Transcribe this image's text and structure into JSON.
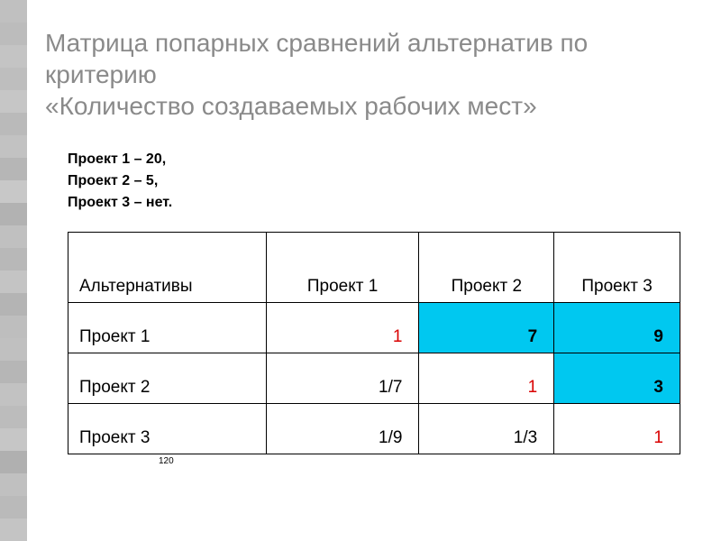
{
  "title_line1": "Матрица попарных сравнений альтернатив по критерию",
  "title_line2": "«Количество создаваемых рабочих мест»",
  "projects_info": {
    "p1": "Проект 1 – 20,",
    "p2": "Проект 2 – 5,",
    "p3": "Проект 3 – нет."
  },
  "table": {
    "header": {
      "label": "Альтернативы",
      "c1": "Проект 1",
      "c2": "Проект 2",
      "c3": "Проект 3"
    },
    "rows": [
      {
        "label": "Проект 1",
        "cells": [
          {
            "value": "1",
            "red": true,
            "bold": false,
            "highlight": false
          },
          {
            "value": "7",
            "red": false,
            "bold": true,
            "highlight": true
          },
          {
            "value": "9",
            "red": false,
            "bold": true,
            "highlight": true
          }
        ]
      },
      {
        "label": "Проект 2",
        "cells": [
          {
            "value": "1/7",
            "red": false,
            "bold": false,
            "highlight": false
          },
          {
            "value": "1",
            "red": true,
            "bold": false,
            "highlight": false
          },
          {
            "value": "3",
            "red": false,
            "bold": true,
            "highlight": true
          }
        ]
      },
      {
        "label": "Проект 3",
        "cells": [
          {
            "value": "1/9",
            "red": false,
            "bold": false,
            "highlight": false
          },
          {
            "value": "1/3",
            "red": false,
            "bold": false,
            "highlight": false
          },
          {
            "value": "1",
            "red": true,
            "bold": false,
            "highlight": false
          }
        ]
      }
    ]
  },
  "page_number": "120",
  "sidebar_colors": [
    "#c0c0c0",
    "#bcbcbc",
    "#c4c4c4",
    "#bebebe",
    "#c6c6c6",
    "#bababa",
    "#c2c2c2",
    "#b6b6b6",
    "#c8c8c8",
    "#b2b2b2",
    "#c0c0c0",
    "#b8b8b8",
    "#c4c4c4",
    "#b4b4b4",
    "#bebebe",
    "#c0c0c0",
    "#b6b6b6",
    "#c2c2c2",
    "#bcbcbc",
    "#c6c6c6",
    "#b0b0b0",
    "#c0c0c0",
    "#bababa",
    "#c4c4c4"
  ]
}
